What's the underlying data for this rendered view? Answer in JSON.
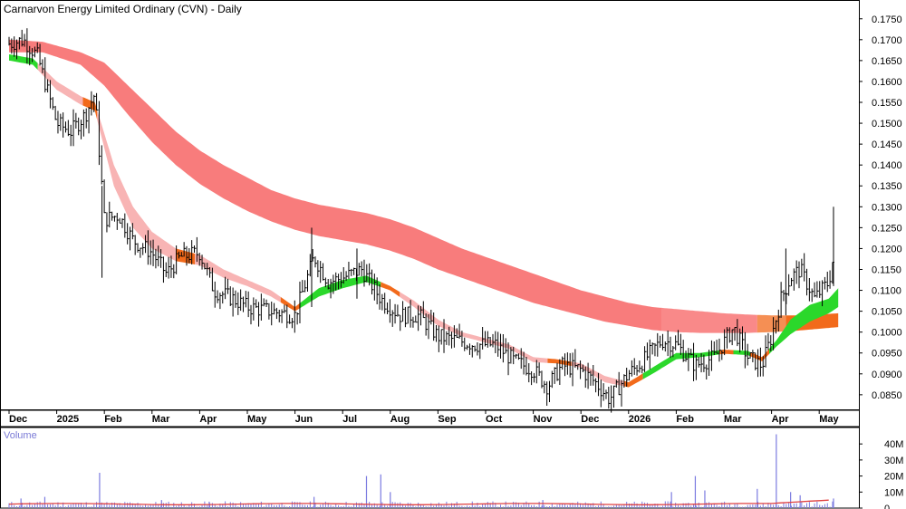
{
  "chart_data": {
    "type": "candlestick",
    "title": "Carnarvon Energy Limited Ordinary (CVN) - Daily",
    "price_axis": {
      "ylim": [
        0.0815,
        0.1795
      ],
      "ticks": [
        "0.1750",
        "0.1700",
        "0.1650",
        "0.1600",
        "0.1550",
        "0.1500",
        "0.1450",
        "0.1400",
        "0.1350",
        "0.1300",
        "0.1250",
        "0.1200",
        "0.1150",
        "0.1100",
        "0.1050",
        "0.1000",
        "0.0950",
        "0.0900",
        "0.0850"
      ]
    },
    "x_axis": {
      "labels": [
        "Dec",
        "2025",
        "Feb",
        "Mar",
        "Apr",
        "May",
        "Jun",
        "Jul",
        "Aug",
        "Sep",
        "Oct",
        "Nov",
        "Dec",
        "2026",
        "Feb",
        "Mar",
        "Apr",
        "May"
      ]
    },
    "price_series": {
      "name": "CVN",
      "points": [
        {
          "month": 0.0,
          "close": 0.169
        },
        {
          "month": 0.3,
          "close": 0.17
        },
        {
          "month": 0.6,
          "close": 0.166
        },
        {
          "month": 0.8,
          "close": 0.158
        },
        {
          "month": 1.0,
          "close": 0.15
        },
        {
          "month": 1.3,
          "close": 0.148
        },
        {
          "month": 1.6,
          "close": 0.152
        },
        {
          "month": 1.8,
          "close": 0.157
        },
        {
          "month": 2.0,
          "close": 0.127
        },
        {
          "month": 2.3,
          "close": 0.128
        },
        {
          "month": 2.6,
          "close": 0.122
        },
        {
          "month": 3.0,
          "close": 0.119
        },
        {
          "month": 3.3,
          "close": 0.114
        },
        {
          "month": 3.6,
          "close": 0.118
        },
        {
          "month": 4.0,
          "close": 0.119
        },
        {
          "month": 4.3,
          "close": 0.11
        },
        {
          "month": 4.7,
          "close": 0.108
        },
        {
          "month": 5.0,
          "close": 0.106
        },
        {
          "month": 5.5,
          "close": 0.105
        },
        {
          "month": 6.0,
          "close": 0.104
        },
        {
          "month": 6.4,
          "close": 0.118
        },
        {
          "month": 6.7,
          "close": 0.112
        },
        {
          "month": 7.0,
          "close": 0.113
        },
        {
          "month": 7.4,
          "close": 0.115
        },
        {
          "month": 7.8,
          "close": 0.108
        },
        {
          "month": 8.2,
          "close": 0.104
        },
        {
          "month": 8.6,
          "close": 0.104
        },
        {
          "month": 9.0,
          "close": 0.099
        },
        {
          "month": 9.4,
          "close": 0.098
        },
        {
          "month": 9.8,
          "close": 0.097
        },
        {
          "month": 10.2,
          "close": 0.097
        },
        {
          "month": 10.6,
          "close": 0.093
        },
        {
          "month": 11.0,
          "close": 0.091
        },
        {
          "month": 11.3,
          "close": 0.087
        },
        {
          "month": 11.6,
          "close": 0.092
        },
        {
          "month": 12.0,
          "close": 0.091
        },
        {
          "month": 12.3,
          "close": 0.088
        },
        {
          "month": 12.6,
          "close": 0.084
        },
        {
          "month": 13.0,
          "close": 0.09
        },
        {
          "month": 13.3,
          "close": 0.093
        },
        {
          "month": 13.7,
          "close": 0.098
        },
        {
          "month": 14.0,
          "close": 0.097
        },
        {
          "month": 14.4,
          "close": 0.092
        },
        {
          "month": 14.8,
          "close": 0.094
        },
        {
          "month": 15.2,
          "close": 0.101
        },
        {
          "month": 15.5,
          "close": 0.094
        },
        {
          "month": 15.8,
          "close": 0.092
        },
        {
          "month": 16.0,
          "close": 0.099
        },
        {
          "month": 16.2,
          "close": 0.108
        },
        {
          "month": 16.4,
          "close": 0.113
        },
        {
          "month": 16.6,
          "close": 0.115
        },
        {
          "month": 16.9,
          "close": 0.108
        },
        {
          "month": 17.2,
          "close": 0.112
        },
        {
          "month": 17.3,
          "close": 0.118
        }
      ],
      "spikes": [
        {
          "month": 1.95,
          "high": 0.135,
          "low": 0.113
        },
        {
          "month": 6.35,
          "high": 0.125,
          "low": 0.106
        },
        {
          "month": 7.3,
          "high": 0.12,
          "low": 0.108
        },
        {
          "month": 16.3,
          "high": 0.12,
          "low": 0.104
        },
        {
          "month": 17.3,
          "high": 0.13,
          "low": 0.111
        }
      ]
    },
    "short_term_band": {
      "name": "Short-term moving average band",
      "points": [
        {
          "month": 0.0,
          "upper": 0.1665,
          "lower": 0.165
        },
        {
          "month": 0.5,
          "upper": 0.1655,
          "lower": 0.164
        },
        {
          "month": 1.0,
          "upper": 0.16,
          "lower": 0.158
        },
        {
          "month": 1.5,
          "upper": 0.1565,
          "lower": 0.1545
        },
        {
          "month": 1.8,
          "upper": 0.155,
          "lower": 0.153
        },
        {
          "month": 2.2,
          "upper": 0.14,
          "lower": 0.135
        },
        {
          "month": 2.6,
          "upper": 0.13,
          "lower": 0.125
        },
        {
          "month": 3.0,
          "upper": 0.124,
          "lower": 0.12
        },
        {
          "month": 3.5,
          "upper": 0.12,
          "lower": 0.117
        },
        {
          "month": 4.0,
          "upper": 0.1185,
          "lower": 0.116
        },
        {
          "month": 4.5,
          "upper": 0.115,
          "lower": 0.113
        },
        {
          "month": 5.0,
          "upper": 0.1125,
          "lower": 0.111
        },
        {
          "month": 5.5,
          "upper": 0.11,
          "lower": 0.1085
        },
        {
          "month": 6.0,
          "upper": 0.106,
          "lower": 0.105
        },
        {
          "month": 6.5,
          "upper": 0.1105,
          "lower": 0.1085
        },
        {
          "month": 7.0,
          "upper": 0.1125,
          "lower": 0.1105
        },
        {
          "month": 7.5,
          "upper": 0.1135,
          "lower": 0.112
        },
        {
          "month": 8.0,
          "upper": 0.111,
          "lower": 0.11
        },
        {
          "month": 8.5,
          "upper": 0.1075,
          "lower": 0.106
        },
        {
          "month": 9.0,
          "upper": 0.103,
          "lower": 0.1015
        },
        {
          "month": 9.5,
          "upper": 0.1,
          "lower": 0.099
        },
        {
          "month": 10.0,
          "upper": 0.0985,
          "lower": 0.0975
        },
        {
          "month": 10.5,
          "upper": 0.097,
          "lower": 0.096
        },
        {
          "month": 11.0,
          "upper": 0.094,
          "lower": 0.0928
        },
        {
          "month": 11.5,
          "upper": 0.0935,
          "lower": 0.0925
        },
        {
          "month": 12.0,
          "upper": 0.0925,
          "lower": 0.0915
        },
        {
          "month": 12.5,
          "upper": 0.0895,
          "lower": 0.088
        },
        {
          "month": 13.0,
          "upper": 0.088,
          "lower": 0.0868
        },
        {
          "month": 13.5,
          "upper": 0.0915,
          "lower": 0.09
        },
        {
          "month": 14.0,
          "upper": 0.095,
          "lower": 0.0935
        },
        {
          "month": 14.5,
          "upper": 0.095,
          "lower": 0.094
        },
        {
          "month": 15.0,
          "upper": 0.0958,
          "lower": 0.0948
        },
        {
          "month": 15.5,
          "upper": 0.0955,
          "lower": 0.0945
        },
        {
          "month": 15.8,
          "upper": 0.094,
          "lower": 0.093
        },
        {
          "month": 16.1,
          "upper": 0.098,
          "lower": 0.0965
        },
        {
          "month": 16.4,
          "upper": 0.103,
          "lower": 0.0995
        },
        {
          "month": 16.8,
          "upper": 0.1065,
          "lower": 0.1025
        },
        {
          "month": 17.2,
          "upper": 0.108,
          "lower": 0.1045
        },
        {
          "month": 17.4,
          "upper": 0.1105,
          "lower": 0.106
        }
      ]
    },
    "long_term_band": {
      "name": "Long-term moving average band",
      "points": [
        {
          "month": 0.0,
          "upper": 0.17,
          "lower": 0.167
        },
        {
          "month": 0.7,
          "upper": 0.1695,
          "lower": 0.167
        },
        {
          "month": 1.5,
          "upper": 0.167,
          "lower": 0.164
        },
        {
          "month": 2.0,
          "upper": 0.1645,
          "lower": 0.159
        },
        {
          "month": 2.5,
          "upper": 0.159,
          "lower": 0.152
        },
        {
          "month": 3.0,
          "upper": 0.1535,
          "lower": 0.1455
        },
        {
          "month": 3.5,
          "upper": 0.148,
          "lower": 0.14
        },
        {
          "month": 4.0,
          "upper": 0.1435,
          "lower": 0.1355
        },
        {
          "month": 4.5,
          "upper": 0.14,
          "lower": 0.132
        },
        {
          "month": 5.0,
          "upper": 0.137,
          "lower": 0.129
        },
        {
          "month": 5.5,
          "upper": 0.134,
          "lower": 0.1265
        },
        {
          "month": 6.0,
          "upper": 0.132,
          "lower": 0.1245
        },
        {
          "month": 6.5,
          "upper": 0.1305,
          "lower": 0.123
        },
        {
          "month": 7.0,
          "upper": 0.1295,
          "lower": 0.122
        },
        {
          "month": 7.5,
          "upper": 0.1285,
          "lower": 0.121
        },
        {
          "month": 8.0,
          "upper": 0.127,
          "lower": 0.1195
        },
        {
          "month": 8.5,
          "upper": 0.125,
          "lower": 0.1175
        },
        {
          "month": 9.0,
          "upper": 0.1225,
          "lower": 0.115
        },
        {
          "month": 9.5,
          "upper": 0.12,
          "lower": 0.113
        },
        {
          "month": 10.0,
          "upper": 0.118,
          "lower": 0.111
        },
        {
          "month": 10.5,
          "upper": 0.116,
          "lower": 0.109
        },
        {
          "month": 11.0,
          "upper": 0.114,
          "lower": 0.107
        },
        {
          "month": 11.5,
          "upper": 0.112,
          "lower": 0.1055
        },
        {
          "month": 12.0,
          "upper": 0.11,
          "lower": 0.104
        },
        {
          "month": 12.5,
          "upper": 0.1085,
          "lower": 0.1025
        },
        {
          "month": 13.0,
          "upper": 0.107,
          "lower": 0.1015
        },
        {
          "month": 13.5,
          "upper": 0.106,
          "lower": 0.1005
        },
        {
          "month": 14.0,
          "upper": 0.1055,
          "lower": 0.1
        },
        {
          "month": 14.5,
          "upper": 0.105,
          "lower": 0.0998
        },
        {
          "month": 15.0,
          "upper": 0.1045,
          "lower": 0.0998
        },
        {
          "month": 15.5,
          "upper": 0.1042,
          "lower": 0.0998
        },
        {
          "month": 16.0,
          "upper": 0.104,
          "lower": 0.1
        },
        {
          "month": 16.5,
          "upper": 0.104,
          "lower": 0.1003
        },
        {
          "month": 17.0,
          "upper": 0.1042,
          "lower": 0.1008
        },
        {
          "month": 17.4,
          "upper": 0.1045,
          "lower": 0.1012
        }
      ]
    },
    "volume": {
      "title": "Volume",
      "ylim": [
        0,
        48
      ],
      "unit": "M",
      "ticks": [
        "40M",
        "30M",
        "20M",
        "10M",
        "0"
      ],
      "baseline_m": 2.5,
      "spikes_m": [
        {
          "month": 0.25,
          "value": 6
        },
        {
          "month": 0.75,
          "value": 7
        },
        {
          "month": 1.9,
          "value": 22
        },
        {
          "month": 3.2,
          "value": 5
        },
        {
          "month": 4.2,
          "value": 4
        },
        {
          "month": 6.4,
          "value": 7
        },
        {
          "month": 7.5,
          "value": 20
        },
        {
          "month": 7.8,
          "value": 21
        },
        {
          "month": 8.0,
          "value": 10
        },
        {
          "month": 11.2,
          "value": 5
        },
        {
          "month": 13.9,
          "value": 10
        },
        {
          "month": 14.4,
          "value": 20
        },
        {
          "month": 14.6,
          "value": 11
        },
        {
          "month": 15.7,
          "value": 12
        },
        {
          "month": 16.1,
          "value": 46
        },
        {
          "month": 16.4,
          "value": 10
        },
        {
          "month": 16.6,
          "value": 8
        },
        {
          "month": 17.3,
          "value": 6
        }
      ]
    },
    "colors": {
      "long_band": "#f87c7c",
      "short_band_falling": "#f8b4b4",
      "short_band_orange": "#f26a1b",
      "short_band_rising": "#2bd82b",
      "price_bars": "#000000",
      "volume_bars": "#7b7be0",
      "volume_avg_line": "#e04040",
      "volume_title": "#7a7ad6"
    }
  }
}
